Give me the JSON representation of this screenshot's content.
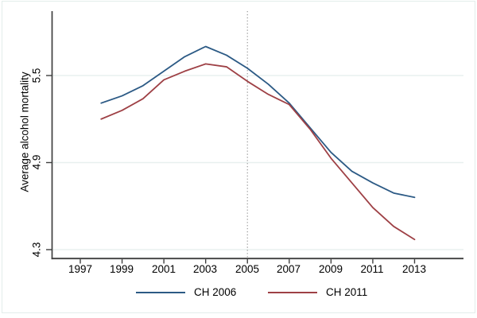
{
  "chart_data": {
    "type": "line",
    "title": "",
    "xlabel": "",
    "ylabel": "Average alcohol mortality",
    "x": [
      1998,
      1999,
      2000,
      2001,
      2002,
      2003,
      2004,
      2005,
      2006,
      2007,
      2008,
      2009,
      2010,
      2011,
      2012,
      2013
    ],
    "series": [
      {
        "name": "CH 2006",
        "color": "#2c5a85",
        "values": [
          5.31,
          5.36,
          5.43,
          5.53,
          5.63,
          5.7,
          5.64,
          5.55,
          5.44,
          5.31,
          5.14,
          4.97,
          4.84,
          4.76,
          4.69,
          4.66
        ]
      },
      {
        "name": "CH 2011",
        "color": "#9e4045",
        "values": [
          5.2,
          5.26,
          5.34,
          5.47,
          5.53,
          5.58,
          5.56,
          5.46,
          5.37,
          5.3,
          5.13,
          4.93,
          4.76,
          4.59,
          4.46,
          4.37
        ]
      }
    ],
    "x_ticks": [
      1997,
      1999,
      2001,
      2003,
      2005,
      2007,
      2009,
      2011,
      2013
    ],
    "x_tick_labels": [
      "1997",
      "1999",
      "2001",
      "2003",
      "2005",
      "2007",
      "2009",
      "2011",
      "2013"
    ],
    "y_ticks": [
      5.5,
      4.9,
      4.3
    ],
    "y_tick_labels": [
      "5.5",
      "4.9",
      "4.3"
    ],
    "xlim": [
      1995.6,
      2015.4
    ],
    "ylim": [
      4.24,
      5.94
    ],
    "grid": true,
    "legend_position": "bottom",
    "reference_line_x": 2005,
    "colors": {
      "grid": "#e8f0ef",
      "axis": "#3f3f3f",
      "reference": "#999999",
      "border": "#e3edeb",
      "background": "#ffffff",
      "text": "#000000"
    }
  }
}
